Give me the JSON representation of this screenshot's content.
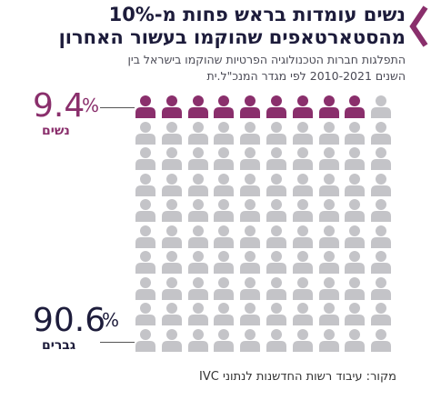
{
  "title": {
    "line1": "נשים עומדות בראש פחות מ-10%",
    "line2": "מהסטארטאפים שהוקמו בעשור האחרון"
  },
  "subtitle": {
    "line1": "התפלגות חברות הטכנולוגיה הפרטיות שהוקמו בישראל בין",
    "line2": "השנים 2010-2021 לפי מגדר המנכ\"ל.ית"
  },
  "source": "מקור: עיבוד רשות החדשנות לנתוני IVC",
  "colors": {
    "women": "#8a2f6c",
    "men": "#c4c4c8",
    "title": "#1d1c3b",
    "chevron": "#8a2f6c"
  },
  "chart_data": {
    "type": "pictogram",
    "grid": {
      "rows": 10,
      "cols": 10
    },
    "series": [
      {
        "name": "נשים",
        "value": 9.4,
        "value_label": "9.4",
        "unit": "%",
        "icons": 9
      },
      {
        "name": "גברים",
        "value": 90.6,
        "value_label": "90.6",
        "unit": "%",
        "icons": 91
      }
    ]
  }
}
